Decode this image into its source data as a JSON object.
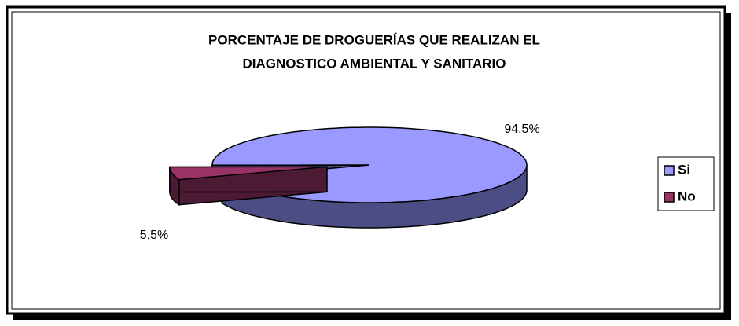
{
  "chart_data": {
    "type": "pie",
    "title": [
      "PORCENTAJE DE DROGUERÍAS QUE REALIZAN EL",
      "DIAGNOSTICO AMBIENTAL Y SANITARIO"
    ],
    "categories": [
      "Si",
      "No"
    ],
    "values": [
      94.5,
      5.5
    ],
    "value_labels": [
      "94,5%",
      "5,5%"
    ],
    "colors": [
      "#9999ff",
      "#993366"
    ],
    "side_colors": [
      "#4d4d85",
      "#4c1a33"
    ],
    "exploded": [
      false,
      true
    ],
    "legend": "right"
  }
}
